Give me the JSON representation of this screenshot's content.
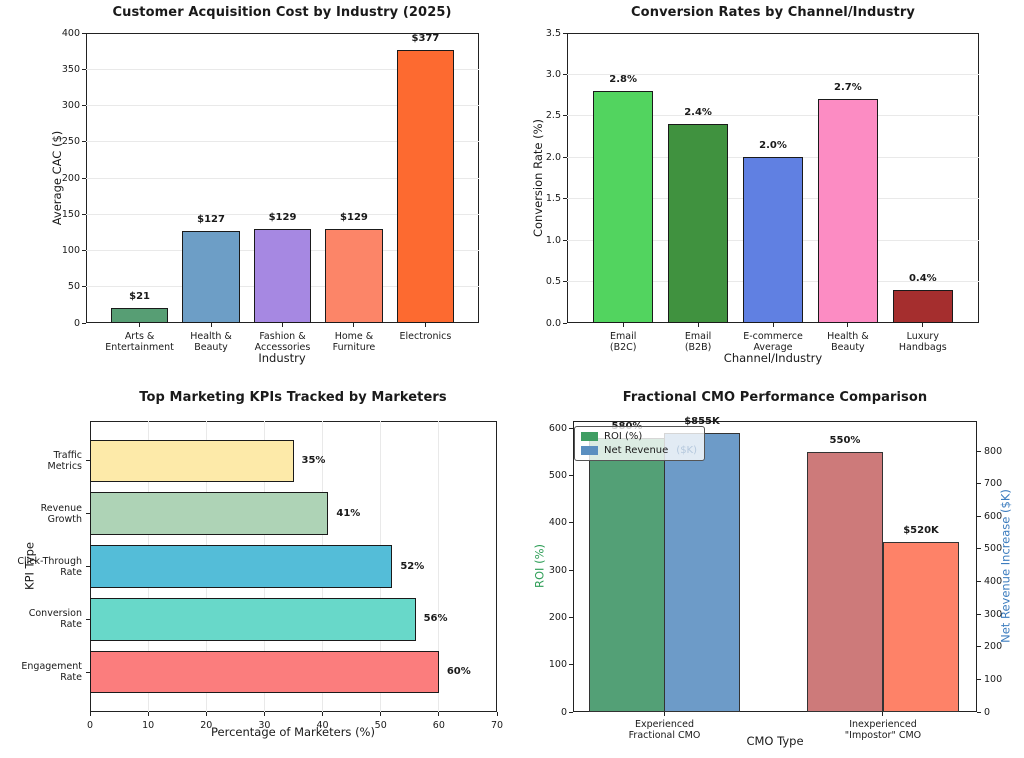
{
  "figure": {
    "background": "#ffffff"
  },
  "chart_data": [
    {
      "type": "bar",
      "title": "Customer Acquisition Cost by Industry (2025)",
      "xlabel": "Industry",
      "ylabel": "Average CAC ($)",
      "categories": [
        [
          "Arts &",
          "Entertainment"
        ],
        [
          "Health &",
          "Beauty"
        ],
        [
          "Fashion &",
          "Accessories"
        ],
        [
          "Home &",
          "Furniture"
        ],
        [
          "Electronics"
        ]
      ],
      "values": [
        21,
        127,
        129,
        129,
        377
      ],
      "value_labels": [
        "$21",
        "$127",
        "$129",
        "$129",
        "$377"
      ],
      "colors": [
        "#579e74",
        "#6d9ec6",
        "#a688e2",
        "#fc8568",
        "#fd6a30"
      ],
      "yticks": [
        "0",
        "50",
        "100",
        "150",
        "200",
        "250",
        "300",
        "350",
        "400"
      ],
      "axis_max": 400,
      "ylim": [
        0,
        400
      ],
      "grid": "horizontal",
      "legend": null
    },
    {
      "type": "bar",
      "title": "Conversion Rates by Channel/Industry",
      "xlabel": "Channel/Industry",
      "ylabel": "Conversion Rate (%)",
      "categories": [
        [
          "Email",
          "(B2C)"
        ],
        [
          "Email",
          "(B2B)"
        ],
        [
          "E-commerce",
          "Average"
        ],
        [
          "Health &",
          "Beauty"
        ],
        [
          "Luxury",
          "Handbags"
        ]
      ],
      "values": [
        2.8,
        2.4,
        2.0,
        2.7,
        0.4
      ],
      "value_labels": [
        "2.8%",
        "2.4%",
        "2.0%",
        "2.7%",
        "0.4%"
      ],
      "colors": [
        "#52d45f",
        "#40923f",
        "#6080e2",
        "#fc8cc3",
        "#a52e2e"
      ],
      "yticks": [
        "0.0",
        "0.5",
        "1.0",
        "1.5",
        "2.0",
        "2.5",
        "3.0",
        "3.5"
      ],
      "axis_max": 3.5,
      "ylim": [
        0,
        3.5
      ],
      "grid": "horizontal",
      "legend": null
    },
    {
      "type": "barh",
      "title": "Top Marketing KPIs Tracked by Marketers",
      "xlabel": "Percentage of Marketers (%)",
      "ylabel": "KPI Type",
      "categories": [
        [
          "Traffic",
          "Metrics"
        ],
        [
          "Revenue",
          "Growth"
        ],
        [
          "Click-Through",
          "Rate"
        ],
        [
          "Conversion",
          "Rate"
        ],
        [
          "Engagement",
          "Rate"
        ]
      ],
      "values": [
        35,
        41,
        52,
        56,
        60
      ],
      "value_labels": [
        "35%",
        "41%",
        "52%",
        "56%",
        "60%"
      ],
      "colors": [
        "#fdeaa9",
        "#aed3b6",
        "#54bdd8",
        "#68d8c9",
        "#fb7d7d"
      ],
      "xticks": [
        "0",
        "10",
        "20",
        "30",
        "40",
        "50",
        "60",
        "70"
      ],
      "axis_max": 70,
      "xlim": [
        0,
        70
      ],
      "grid": "vertical",
      "legend": null
    },
    {
      "type": "grouped-bar-dual-axis",
      "title": "Fractional CMO Performance Comparison",
      "xlabel": "CMO Type",
      "categories": [
        [
          "Experienced",
          "Fractional CMO"
        ],
        [
          "Inexperienced",
          "\"Impostor\" CMO"
        ]
      ],
      "series": [
        {
          "name": "ROI (%)",
          "axis": "left",
          "values": [
            580,
            550
          ],
          "value_labels": [
            "580%",
            "550%"
          ],
          "colors": [
            "#53a076",
            "#cd7a7a"
          ]
        },
        {
          "name": "Net Revenue ($K)",
          "axis": "right",
          "values": [
            855,
            520
          ],
          "value_labels": [
            "$855K",
            "$520K"
          ],
          "colors": [
            "#6d9bc8",
            "#fe8268"
          ]
        }
      ],
      "left_axis": {
        "label": "ROI (%)",
        "color": "#2e9e57",
        "ticks": [
          "0",
          "100",
          "200",
          "300",
          "400",
          "500",
          "600"
        ],
        "max": 615,
        "lim": [
          0,
          615
        ]
      },
      "right_axis": {
        "label": "Net Revenue Increase ($K)",
        "color": "#3d7dbf",
        "ticks": [
          "0",
          "100",
          "200",
          "300",
          "400",
          "500",
          "600",
          "700",
          "800"
        ],
        "max": 892,
        "lim": [
          0,
          892
        ]
      },
      "legend": {
        "entries": [
          {
            "label": "ROI (%)",
            "swatch": "#3f9e63"
          },
          {
            "label": "Net Revenue ($K)",
            "label_main": "Net Revenue",
            "label_faded": "($K)",
            "swatch": "#5b8fc0"
          }
        ]
      },
      "grid": "none"
    }
  ]
}
